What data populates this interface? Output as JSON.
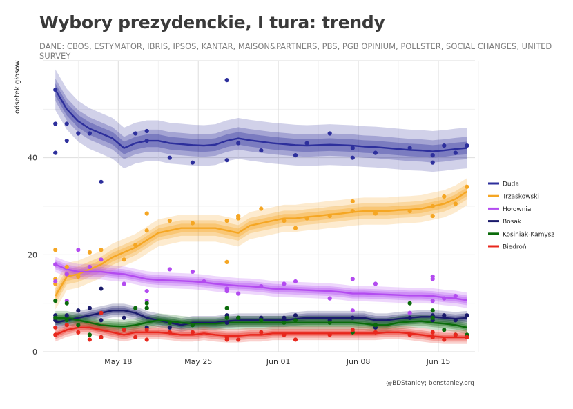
{
  "title": "Wybory prezydenckie, I tura: trendy",
  "subtitle": "DANE: CBOS, ESTYMATOR, IBRIS, IPSOS, KANTAR, MAISON&PARTNERS, PBS, PGB OPINIUM, POLLSTER, SOCIAL CHANGES, UNITED SURVEY",
  "caption": "@BDStanley; benstanley.org",
  "chart_data": {
    "type": "line",
    "title": "Wybory prezydenckie, I tura: trendy",
    "xlabel": "",
    "ylabel": "odsetek głosów",
    "x_range": [
      "2020-05-12",
      "2020-06-18"
    ],
    "xlim": [
      11.4,
      49.2
    ],
    "ylim": [
      0,
      60
    ],
    "yticks": [
      0,
      20,
      40
    ],
    "xticks": [
      {
        "value": 18,
        "label": "May 18"
      },
      {
        "value": 25,
        "label": "May 25"
      },
      {
        "value": 32,
        "label": "Jun 01"
      },
      {
        "value": 39,
        "label": "Jun 08"
      },
      {
        "value": 46,
        "label": "Jun 15"
      }
    ],
    "grid": true,
    "legend_position": "right",
    "series": [
      {
        "name": "Duda",
        "color": "#2d2f9c",
        "x": [
          12.5,
          13.5,
          14.5,
          15.5,
          16.5,
          17.5,
          18.5,
          19.5,
          20.5,
          21.5,
          22.5,
          23.5,
          24.5,
          25.5,
          26.5,
          27.5,
          28.5,
          29.5,
          30.5,
          31.5,
          32.5,
          33.5,
          34.5,
          35.5,
          36.5,
          37.5,
          38.5,
          39.5,
          40.5,
          41.5,
          42.5,
          43.5,
          44.5,
          45.5,
          46.5,
          47.5,
          48.5
        ],
        "y": [
          54,
          50,
          47.5,
          46,
          45,
          44,
          42,
          43,
          43.5,
          43.5,
          43,
          42.8,
          42.6,
          42.5,
          42.7,
          43.5,
          44,
          43.6,
          43.3,
          43,
          42.8,
          42.6,
          42.5,
          42.6,
          42.7,
          42.6,
          42.5,
          42.3,
          42.2,
          42,
          41.8,
          41.6,
          41.5,
          41.3,
          41.5,
          41.8,
          42
        ],
        "band_inner": 1.3,
        "band_mid": 2.3,
        "band_outer": 4.2
      },
      {
        "name": "Trzaskowski",
        "color": "#f5a623",
        "x": [
          12.5,
          13.5,
          14.5,
          15.5,
          16.5,
          17.5,
          18.5,
          19.5,
          20.5,
          21.5,
          22.5,
          23.5,
          24.5,
          25.5,
          26.5,
          27.5,
          28.5,
          29.5,
          30.5,
          31.5,
          32.5,
          33.5,
          34.5,
          35.5,
          36.5,
          37.5,
          38.5,
          39.5,
          40.5,
          41.5,
          42.5,
          43.5,
          44.5,
          45.5,
          46.5,
          47.5,
          48.5
        ],
        "y": [
          11.5,
          15.5,
          16,
          17,
          18,
          19.5,
          20.5,
          21.5,
          23,
          24.5,
          25,
          25.5,
          25.5,
          25.5,
          25.5,
          25,
          24.5,
          26,
          26.5,
          27,
          27.5,
          27.5,
          27.8,
          28,
          28.3,
          28.5,
          28.8,
          29,
          29,
          29,
          29.2,
          29.3,
          29.5,
          30,
          30.5,
          31.5,
          33
        ],
        "band_inner": 0.9,
        "band_mid": 1.6,
        "band_outer": 2.8
      },
      {
        "name": "Hołownia",
        "color": "#b34bf0",
        "x": [
          12.5,
          13.5,
          14.5,
          15.5,
          16.5,
          17.5,
          18.5,
          19.5,
          20.5,
          21.5,
          22.5,
          23.5,
          24.5,
          25.5,
          26.5,
          27.5,
          28.5,
          29.5,
          30.5,
          31.5,
          32.5,
          33.5,
          34.5,
          35.5,
          36.5,
          37.5,
          38.5,
          39.5,
          40.5,
          41.5,
          42.5,
          43.5,
          44.5,
          45.5,
          46.5,
          47.5,
          48.5
        ],
        "y": [
          18,
          17,
          16.5,
          16.5,
          16.5,
          16.2,
          16,
          15.5,
          15,
          14.8,
          14.7,
          14.6,
          14.5,
          14.3,
          14,
          13.8,
          13.6,
          13.5,
          13.3,
          13,
          12.9,
          12.8,
          12.7,
          12.6,
          12.5,
          12.3,
          12,
          12,
          11.9,
          11.8,
          11.7,
          11.6,
          11.6,
          11.5,
          11.2,
          11,
          10.6
        ],
        "band_inner": 0.6,
        "band_mid": 1.0,
        "band_outer": 1.6
      },
      {
        "name": "Bosak",
        "color": "#1a1a6b",
        "x": [
          12.5,
          13.5,
          14.5,
          15.5,
          16.5,
          17.5,
          18.5,
          19.5,
          20.5,
          21.5,
          22.5,
          23.5,
          24.5,
          25.5,
          26.5,
          27.5,
          28.5,
          29.5,
          30.5,
          31.5,
          32.5,
          33.5,
          34.5,
          35.5,
          36.5,
          37.5,
          38.5,
          39.5,
          40.5,
          41.5,
          42.5,
          43.5,
          44.5,
          45.5,
          46.5,
          47.5,
          48.5
        ],
        "y": [
          6,
          6.5,
          7,
          7.5,
          8,
          8.5,
          8.5,
          8,
          7,
          6.5,
          6,
          5.5,
          6,
          6,
          6,
          6.3,
          6.5,
          6.5,
          6.5,
          6.5,
          6.5,
          6.8,
          7,
          7,
          7,
          7,
          7,
          7,
          6.5,
          6.5,
          6.8,
          7,
          7.2,
          7.2,
          7,
          6.8,
          7
        ],
        "band_inner": 0.5,
        "band_mid": 0.9,
        "band_outer": 1.4
      },
      {
        "name": "Kosiniak-Kamysz",
        "color": "#0b6b0b",
        "x": [
          12.5,
          13.5,
          14.5,
          15.5,
          16.5,
          17.5,
          18.5,
          19.5,
          20.5,
          21.5,
          22.5,
          23.5,
          24.5,
          25.5,
          26.5,
          27.5,
          28.5,
          29.5,
          30.5,
          31.5,
          32.5,
          33.5,
          34.5,
          35.5,
          36.5,
          37.5,
          38.5,
          39.5,
          40.5,
          41.5,
          42.5,
          43.5,
          44.5,
          45.5,
          46.5,
          47.5,
          48.5
        ],
        "y": [
          7,
          7,
          6.5,
          6,
          5.5,
          5.3,
          5.2,
          5.5,
          6,
          6.5,
          6.3,
          6,
          5.8,
          5.8,
          5.8,
          6,
          6,
          6,
          6,
          6,
          6,
          6,
          6,
          6,
          6,
          6,
          6,
          5.8,
          5.5,
          5.5,
          6,
          6.2,
          6.3,
          6,
          5.8,
          5.5,
          5
        ],
        "band_inner": 0.5,
        "band_mid": 0.9,
        "band_outer": 1.4
      },
      {
        "name": "Biedroń",
        "color": "#e8271d",
        "x": [
          12.5,
          13.5,
          14.5,
          15.5,
          16.5,
          17.5,
          18.5,
          19.5,
          20.5,
          21.5,
          22.5,
          23.5,
          24.5,
          25.5,
          26.5,
          27.5,
          28.5,
          29.5,
          30.5,
          31.5,
          32.5,
          33.5,
          34.5,
          35.5,
          36.5,
          37.5,
          38.5,
          39.5,
          40.5,
          41.5,
          42.5,
          43.5,
          44.5,
          45.5,
          46.5,
          47.5,
          48.5
        ],
        "y": [
          3.5,
          4.5,
          5,
          5,
          4.5,
          4,
          3.5,
          4,
          4,
          4,
          3.8,
          3.5,
          3.5,
          3.8,
          3.5,
          3.3,
          3.3,
          3.5,
          3.5,
          3.8,
          3.8,
          3.8,
          3.8,
          3.8,
          3.8,
          3.8,
          3.8,
          3.8,
          3.8,
          4,
          4,
          3.8,
          3.5,
          3.2,
          3,
          3,
          3
        ],
        "band_inner": 0.5,
        "band_mid": 0.9,
        "band_outer": 1.4
      }
    ],
    "points": {
      "Duda": [
        [
          12.5,
          54
        ],
        [
          12.5,
          47
        ],
        [
          12.5,
          41
        ],
        [
          13.5,
          47
        ],
        [
          13.5,
          43.5
        ],
        [
          14.5,
          45
        ],
        [
          15.5,
          45
        ],
        [
          16.5,
          35
        ],
        [
          19.5,
          45
        ],
        [
          20.5,
          45.5
        ],
        [
          20.5,
          43.5
        ],
        [
          22.5,
          40
        ],
        [
          24.5,
          39
        ],
        [
          27.5,
          56
        ],
        [
          27.5,
          39.5
        ],
        [
          28.5,
          43
        ],
        [
          30.5,
          41.5
        ],
        [
          33.5,
          40.5
        ],
        [
          34.5,
          43
        ],
        [
          36.5,
          45
        ],
        [
          38.5,
          42
        ],
        [
          38.5,
          40
        ],
        [
          40.5,
          41
        ],
        [
          43.5,
          42
        ],
        [
          45.5,
          39
        ],
        [
          45.5,
          40.5
        ],
        [
          46.5,
          42.5
        ],
        [
          47.5,
          41
        ],
        [
          48.5,
          42.5
        ]
      ],
      "Trzaskowski": [
        [
          12.5,
          21
        ],
        [
          12.5,
          15
        ],
        [
          12.5,
          14
        ],
        [
          13.5,
          17.5
        ],
        [
          13.5,
          16
        ],
        [
          14.5,
          15.5
        ],
        [
          15.5,
          20.5
        ],
        [
          16.5,
          21
        ],
        [
          18.5,
          19
        ],
        [
          19.5,
          22
        ],
        [
          20.5,
          28.5
        ],
        [
          20.5,
          25
        ],
        [
          22.5,
          27
        ],
        [
          24.5,
          26.5
        ],
        [
          27.5,
          27
        ],
        [
          27.5,
          18.5
        ],
        [
          28.5,
          28
        ],
        [
          28.5,
          27.5
        ],
        [
          30.5,
          29.5
        ],
        [
          32.5,
          27
        ],
        [
          33.5,
          25.5
        ],
        [
          34.5,
          27.5
        ],
        [
          36.5,
          28
        ],
        [
          38.5,
          31
        ],
        [
          38.5,
          29
        ],
        [
          40.5,
          28.5
        ],
        [
          43.5,
          29
        ],
        [
          45.5,
          30
        ],
        [
          45.5,
          28
        ],
        [
          46.5,
          32
        ],
        [
          47.5,
          30.5
        ],
        [
          48.5,
          34
        ]
      ],
      "Hołownia": [
        [
          12.5,
          18
        ],
        [
          12.5,
          14.5
        ],
        [
          13.5,
          16
        ],
        [
          13.5,
          10.5
        ],
        [
          14.5,
          21
        ],
        [
          15.5,
          17.5
        ],
        [
          16.5,
          19
        ],
        [
          18.5,
          14
        ],
        [
          20.5,
          12.5
        ],
        [
          20.5,
          10.5
        ],
        [
          22.5,
          17
        ],
        [
          24.5,
          16.5
        ],
        [
          25.5,
          14.5
        ],
        [
          27.5,
          13
        ],
        [
          27.5,
          12.5
        ],
        [
          28.5,
          12
        ],
        [
          30.5,
          13.5
        ],
        [
          32.5,
          14
        ],
        [
          33.5,
          14.5
        ],
        [
          36.5,
          11
        ],
        [
          38.5,
          15
        ],
        [
          38.5,
          8.5
        ],
        [
          40.5,
          14
        ],
        [
          43.5,
          8
        ],
        [
          45.5,
          15.5
        ],
        [
          45.5,
          15
        ],
        [
          45.5,
          10.5
        ],
        [
          46.5,
          11
        ],
        [
          47.5,
          11.5
        ]
      ],
      "Bosak": [
        [
          12.5,
          7.5
        ],
        [
          12.5,
          6.5
        ],
        [
          13.5,
          7.5
        ],
        [
          14.5,
          8.5
        ],
        [
          15.5,
          9
        ],
        [
          16.5,
          13
        ],
        [
          16.5,
          6.5
        ],
        [
          18.5,
          7
        ],
        [
          20.5,
          5
        ],
        [
          20.5,
          9
        ],
        [
          22.5,
          5
        ],
        [
          24.5,
          5.5
        ],
        [
          27.5,
          6
        ],
        [
          27.5,
          7.5
        ],
        [
          28.5,
          7
        ],
        [
          30.5,
          7
        ],
        [
          32.5,
          7
        ],
        [
          33.5,
          7.5
        ],
        [
          36.5,
          6.5
        ],
        [
          38.5,
          7
        ],
        [
          40.5,
          5
        ],
        [
          43.5,
          7
        ],
        [
          45.5,
          7.5
        ],
        [
          45.5,
          6.5
        ],
        [
          46.5,
          7.5
        ],
        [
          47.5,
          6.5
        ],
        [
          48.5,
          7.5
        ]
      ],
      "Kosiniak-Kamysz": [
        [
          12.5,
          10.5
        ],
        [
          12.5,
          7
        ],
        [
          13.5,
          10
        ],
        [
          13.5,
          6.5
        ],
        [
          14.5,
          5.5
        ],
        [
          15.5,
          3.5
        ],
        [
          16.5,
          3
        ],
        [
          19.5,
          9
        ],
        [
          20.5,
          10
        ],
        [
          20.5,
          9
        ],
        [
          22.5,
          6
        ],
        [
          24.5,
          5.5
        ],
        [
          27.5,
          9
        ],
        [
          27.5,
          7
        ],
        [
          28.5,
          7
        ],
        [
          30.5,
          6.5
        ],
        [
          32.5,
          6
        ],
        [
          33.5,
          6.5
        ],
        [
          36.5,
          6
        ],
        [
          38.5,
          4
        ],
        [
          40.5,
          5.5
        ],
        [
          43.5,
          10
        ],
        [
          45.5,
          8.5
        ],
        [
          45.5,
          7
        ],
        [
          46.5,
          4.5
        ],
        [
          47.5,
          3.5
        ],
        [
          48.5,
          3.5
        ]
      ],
      "Biedroń": [
        [
          12.5,
          5
        ],
        [
          12.5,
          3.5
        ],
        [
          13.5,
          5.5
        ],
        [
          14.5,
          4
        ],
        [
          15.5,
          2.5
        ],
        [
          16.5,
          8
        ],
        [
          16.5,
          3
        ],
        [
          18.5,
          4.5
        ],
        [
          19.5,
          3
        ],
        [
          20.5,
          4.5
        ],
        [
          20.5,
          2.5
        ],
        [
          22.5,
          4
        ],
        [
          24.5,
          4
        ],
        [
          27.5,
          2.5
        ],
        [
          27.5,
          3
        ],
        [
          28.5,
          2.5
        ],
        [
          30.5,
          4
        ],
        [
          32.5,
          3.5
        ],
        [
          33.5,
          2.5
        ],
        [
          36.5,
          3.5
        ],
        [
          38.5,
          4.5
        ],
        [
          40.5,
          4
        ],
        [
          43.5,
          3.5
        ],
        [
          45.5,
          4
        ],
        [
          45.5,
          3
        ],
        [
          46.5,
          2.5
        ],
        [
          47.5,
          3.5
        ],
        [
          48.5,
          3
        ]
      ]
    }
  }
}
